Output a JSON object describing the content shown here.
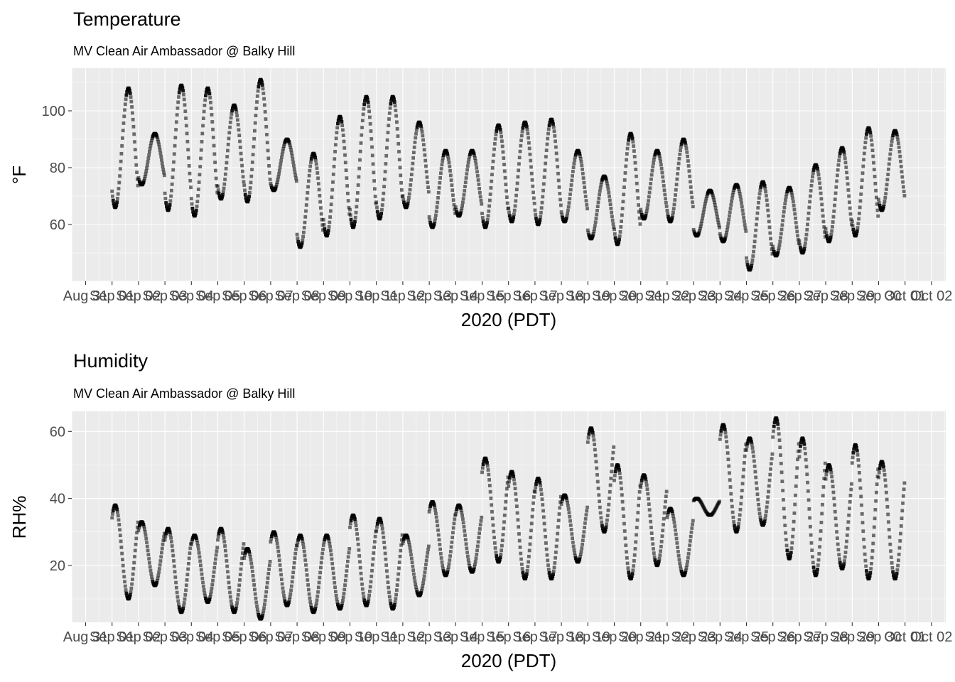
{
  "chart_data": [
    {
      "type": "scatter",
      "title": "Temperature",
      "subtitle": "MV Clean Air Ambassador @ Balky Hill",
      "xlabel": "2020 (PDT)",
      "ylabel": "°F",
      "ylim": [
        40,
        115
      ],
      "yticks": [
        60,
        80,
        100
      ],
      "xticks": [
        "Aug 31",
        "Sep 01",
        "Sep 02",
        "Sep 03",
        "Sep 04",
        "Sep 05",
        "Sep 06",
        "Sep 07",
        "Sep 08",
        "Sep 09",
        "Sep 10",
        "Sep 11",
        "Sep 12",
        "Sep 13",
        "Sep 14",
        "Sep 15",
        "Sep 16",
        "Sep 17",
        "Sep 18",
        "Sep 19",
        "Sep 20",
        "Sep 21",
        "Sep 22",
        "Sep 23",
        "Sep 24",
        "Sep 25",
        "Sep 26",
        "Sep 27",
        "Sep 28",
        "Sep 29",
        "Sep 30",
        "Oct 01",
        "Oct 02"
      ],
      "grid": true,
      "series": [
        {
          "daily_min": [
            66,
            74,
            65,
            63,
            69,
            68,
            72,
            52,
            56,
            59,
            62,
            66,
            59,
            63,
            59,
            61,
            60,
            61,
            55,
            53,
            62,
            61,
            56,
            54,
            44,
            49,
            50,
            54,
            56,
            65
          ],
          "daily_max": [
            108,
            92,
            109,
            108,
            102,
            111,
            90,
            85,
            98,
            105,
            105,
            96,
            86,
            86,
            95,
            96,
            97,
            86,
            77,
            92,
            86,
            90,
            72,
            74,
            75,
            73,
            81,
            87,
            94,
            93
          ]
        }
      ]
    },
    {
      "type": "scatter",
      "title": "Humidity",
      "subtitle": "MV Clean Air Ambassador @ Balky Hill",
      "xlabel": "2020 (PDT)",
      "ylabel": "RH%",
      "ylim": [
        3,
        66
      ],
      "yticks": [
        20,
        40,
        60
      ],
      "xticks": [
        "Aug 31",
        "Sep 01",
        "Sep 02",
        "Sep 03",
        "Sep 04",
        "Sep 05",
        "Sep 06",
        "Sep 07",
        "Sep 08",
        "Sep 09",
        "Sep 10",
        "Sep 11",
        "Sep 12",
        "Sep 13",
        "Sep 14",
        "Sep 15",
        "Sep 16",
        "Sep 17",
        "Sep 18",
        "Sep 19",
        "Sep 20",
        "Sep 21",
        "Sep 22",
        "Sep 23",
        "Sep 24",
        "Sep 25",
        "Sep 26",
        "Sep 27",
        "Sep 28",
        "Sep 29",
        "Sep 30",
        "Oct 01",
        "Oct 02"
      ],
      "grid": true,
      "series": [
        {
          "daily_min": [
            10,
            14,
            6,
            9,
            6,
            4,
            8,
            6,
            7,
            8,
            7,
            11,
            17,
            18,
            21,
            16,
            16,
            21,
            30,
            16,
            20,
            17,
            35,
            30,
            32,
            22,
            17,
            19,
            16,
            16
          ],
          "daily_max": [
            38,
            33,
            31,
            29,
            31,
            25,
            30,
            29,
            29,
            35,
            34,
            29,
            39,
            38,
            52,
            48,
            46,
            41,
            61,
            50,
            47,
            37,
            40,
            62,
            58,
            64,
            58,
            50,
            56,
            51
          ]
        }
      ]
    }
  ]
}
